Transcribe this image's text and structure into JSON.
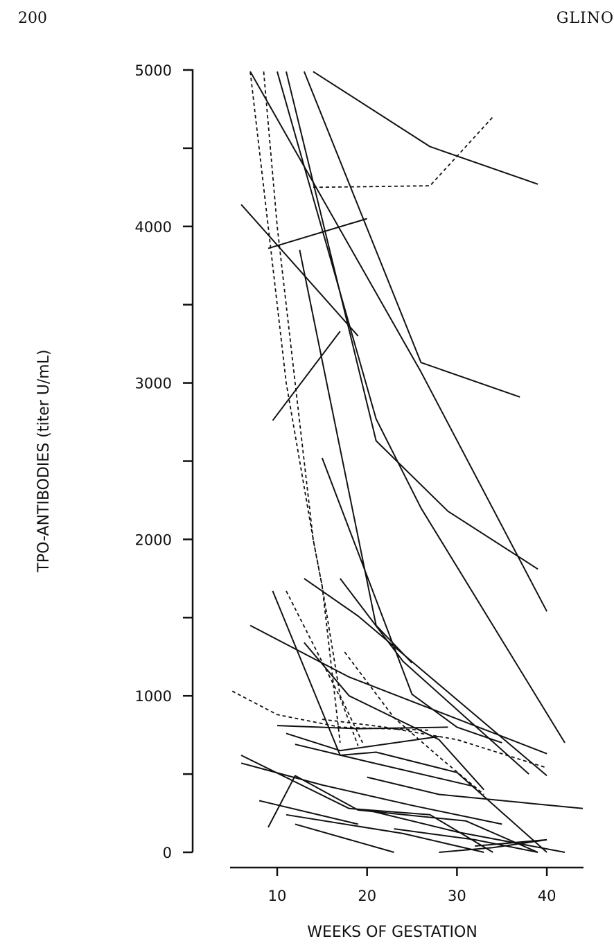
{
  "header": {
    "page_number": "200",
    "running_head": "GLINO"
  },
  "chart_data": {
    "type": "line",
    "title": "",
    "xlabel": "WEEKS OF GESTATION",
    "ylabel": "TPO-ANTIBODIES (titer U/mL)",
    "xlim": [
      5,
      44
    ],
    "ylim": [
      0,
      5000
    ],
    "x_ticks": [
      10,
      20,
      30,
      40
    ],
    "x_tick_labels": [
      "10",
      "20",
      "30",
      "40"
    ],
    "y_ticks": [
      0,
      500,
      1000,
      1500,
      2000,
      2500,
      3000,
      3500,
      4000,
      4500,
      5000
    ],
    "y_tick_labels": [
      "0",
      "",
      "1000",
      "",
      "2000",
      "",
      "3000",
      "",
      "4000",
      "",
      "5000"
    ],
    "grid": false,
    "series": [
      {
        "style": "solid",
        "x": [
          14,
          27,
          39
        ],
        "y": [
          4990,
          4510,
          4270
        ]
      },
      {
        "style": "dashed",
        "x": [
          14,
          27,
          34
        ],
        "y": [
          4250,
          4260,
          4700
        ]
      },
      {
        "style": "solid",
        "x": [
          13,
          26,
          37
        ],
        "y": [
          4990,
          3130,
          2910
        ]
      },
      {
        "style": "solid",
        "x": [
          7,
          26,
          40
        ],
        "y": [
          4990,
          3070,
          1540
        ]
      },
      {
        "style": "solid",
        "x": [
          11,
          21,
          29,
          39
        ],
        "y": [
          4990,
          2630,
          2180,
          1810
        ]
      },
      {
        "style": "solid",
        "x": [
          10,
          21,
          26,
          42
        ],
        "y": [
          4990,
          2770,
          2200,
          700
        ]
      },
      {
        "style": "solid",
        "x": [
          6,
          19
        ],
        "y": [
          4140,
          3300
        ]
      },
      {
        "style": "solid",
        "x": [
          9,
          20
        ],
        "y": [
          3860,
          4050
        ]
      },
      {
        "style": "solid",
        "x": [
          9.5,
          17
        ],
        "y": [
          2760,
          3330
        ]
      },
      {
        "style": "solid",
        "x": [
          12.5,
          21,
          25
        ],
        "y": [
          3850,
          1450,
          1210
        ]
      },
      {
        "style": "dashed",
        "x": [
          7,
          9,
          11,
          14,
          15,
          17,
          19.5
        ],
        "y": [
          4990,
          4000,
          3000,
          2000,
          1700,
          1000,
          700
        ]
      },
      {
        "style": "dashed",
        "x": [
          8.5,
          10,
          12,
          14,
          15,
          17
        ],
        "y": [
          4990,
          4000,
          3000,
          2000,
          1700,
          700
        ]
      },
      {
        "style": "solid",
        "x": [
          15,
          25,
          30,
          35
        ],
        "y": [
          2520,
          1010,
          800,
          700
        ]
      },
      {
        "style": "solid",
        "x": [
          13,
          19,
          40
        ],
        "y": [
          1750,
          1510,
          490
        ]
      },
      {
        "style": "solid",
        "x": [
          17,
          24,
          38
        ],
        "y": [
          1750,
          1220,
          500
        ]
      },
      {
        "style": "dashed",
        "x": [
          11,
          17,
          19
        ],
        "y": [
          1670,
          990,
          680
        ]
      },
      {
        "style": "dashed",
        "x": [
          17.5,
          23,
          28,
          33
        ],
        "y": [
          1280,
          860,
          610,
          370
        ]
      },
      {
        "style": "solid",
        "x": [
          13,
          18,
          28,
          33
        ],
        "y": [
          1340,
          1000,
          720,
          400
        ]
      },
      {
        "style": "solid",
        "x": [
          7,
          18,
          40
        ],
        "y": [
          1450,
          1120,
          630
        ]
      },
      {
        "style": "dashed",
        "x": [
          5,
          10,
          17,
          27
        ],
        "y": [
          1030,
          880,
          800,
          780
        ]
      },
      {
        "style": "dashed",
        "x": [
          15,
          22,
          30,
          40
        ],
        "y": [
          850,
          800,
          720,
          540
        ]
      },
      {
        "style": "solid",
        "x": [
          10,
          19,
          29
        ],
        "y": [
          810,
          790,
          800
        ]
      },
      {
        "style": "solid",
        "x": [
          11,
          17,
          28
        ],
        "y": [
          760,
          650,
          740
        ]
      },
      {
        "style": "solid",
        "x": [
          12,
          20,
          32
        ],
        "y": [
          690,
          580,
          420
        ]
      },
      {
        "style": "solid",
        "x": [
          9.5,
          17,
          21,
          30,
          40
        ],
        "y": [
          1670,
          620,
          640,
          510,
          0
        ]
      },
      {
        "style": "solid",
        "x": [
          6,
          18,
          27,
          34
        ],
        "y": [
          620,
          280,
          240,
          0
        ]
      },
      {
        "style": "solid",
        "x": [
          6,
          15,
          25,
          35
        ],
        "y": [
          570,
          430,
          300,
          180
        ]
      },
      {
        "style": "solid",
        "x": [
          9,
          12,
          19,
          31,
          39
        ],
        "y": [
          160,
          490,
          270,
          200,
          0
        ]
      },
      {
        "style": "solid",
        "x": [
          20,
          28,
          44
        ],
        "y": [
          480,
          370,
          280
        ]
      },
      {
        "style": "solid",
        "x": [
          8,
          19
        ],
        "y": [
          330,
          180
        ]
      },
      {
        "style": "solid",
        "x": [
          11,
          24,
          33
        ],
        "y": [
          240,
          120,
          0
        ]
      },
      {
        "style": "solid",
        "x": [
          12,
          23
        ],
        "y": [
          180,
          0
        ]
      },
      {
        "style": "solid",
        "x": [
          20,
          30,
          42
        ],
        "y": [
          270,
          130,
          0
        ]
      },
      {
        "style": "solid",
        "x": [
          23,
          32,
          39
        ],
        "y": [
          150,
          80,
          0
        ]
      },
      {
        "style": "solid",
        "x": [
          28,
          34,
          40
        ],
        "y": [
          0,
          30,
          80
        ]
      },
      {
        "style": "solid",
        "x": [
          32,
          40
        ],
        "y": [
          40,
          80
        ]
      }
    ]
  }
}
